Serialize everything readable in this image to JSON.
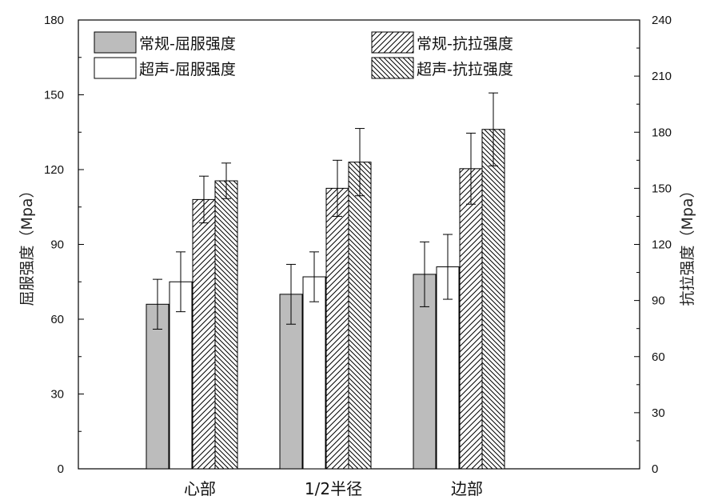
{
  "chart_data": {
    "type": "bar",
    "categories": [
      "心部",
      "1/2半径",
      "边部"
    ],
    "left_axis": {
      "label": "屈服强度（Mpa）",
      "ylim": [
        0,
        180
      ],
      "ticks": [
        0,
        30,
        60,
        90,
        120,
        150,
        180
      ]
    },
    "right_axis": {
      "label": "抗拉强度（Mpa）",
      "ylim": [
        0,
        240
      ],
      "ticks": [
        0,
        30,
        60,
        90,
        120,
        150,
        180,
        210,
        240
      ]
    },
    "series": [
      {
        "name": "常规-屈服强度",
        "axis": "left",
        "fill": "gray",
        "values": [
          66,
          70,
          78
        ],
        "errors": [
          10,
          12,
          13
        ]
      },
      {
        "name": "超声-屈服强度",
        "axis": "left",
        "fill": "white",
        "values": [
          75,
          77,
          81
        ],
        "errors": [
          12,
          10,
          13
        ]
      },
      {
        "name": "常规-抗拉强度",
        "axis": "right",
        "fill": "hatch-forward",
        "values": [
          144,
          150,
          160.5
        ],
        "errors": [
          12.5,
          15,
          19
        ]
      },
      {
        "name": "超声-抗拉强度",
        "axis": "right",
        "fill": "hatch-back",
        "values": [
          154,
          164,
          181.5
        ],
        "errors": [
          9.5,
          18,
          19.5
        ]
      }
    ],
    "legend_position": "top",
    "grid": false,
    "colors": {
      "gray": "#bcbcbc",
      "stroke": "#000000",
      "axis": "#000000"
    }
  }
}
